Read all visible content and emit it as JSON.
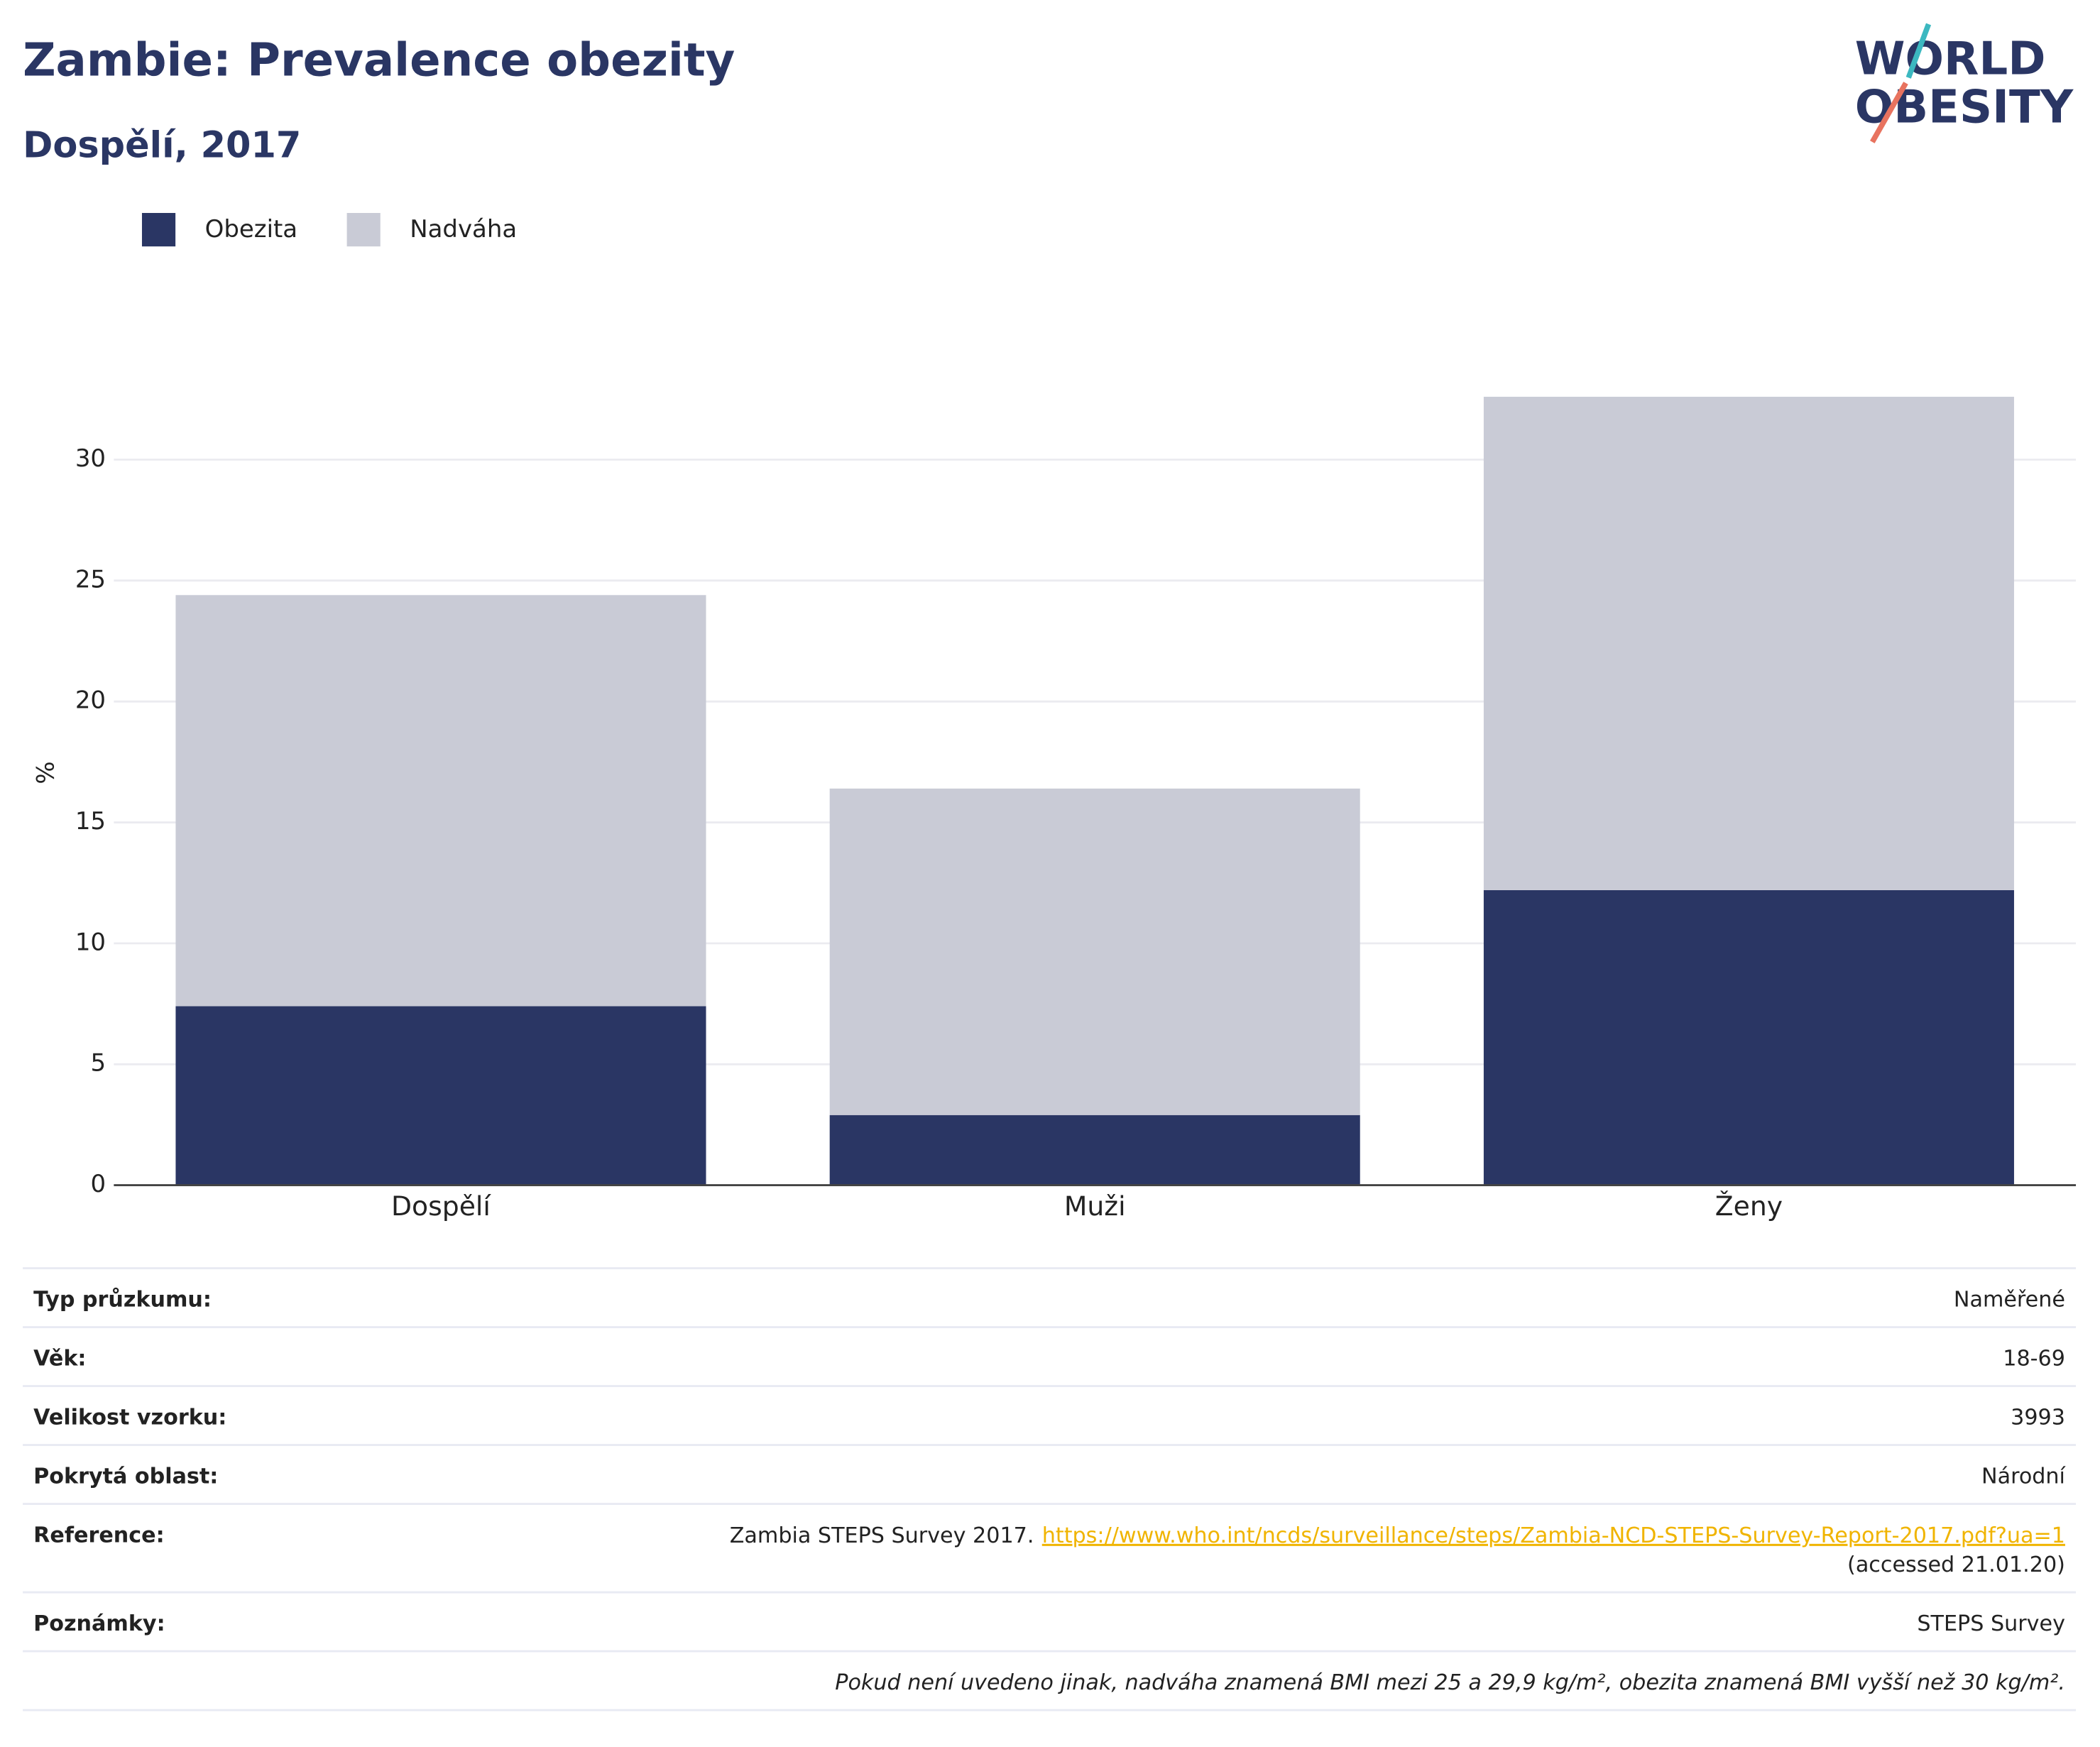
{
  "logo": {
    "line1": "WORLD",
    "line2": "OBESITY"
  },
  "chart_data": {
    "type": "stacked_bar",
    "title": "Zambie: Prevalence obezity",
    "subtitle": "Dospělí, 2017",
    "ylabel": "%",
    "categories": [
      "Dospělí",
      "Muži",
      "Ženy"
    ],
    "series": [
      {
        "name": "Obezita",
        "color": "#2a3664",
        "values": [
          7.4,
          2.9,
          12.2
        ]
      },
      {
        "name": "Nadváha",
        "color": "#c9cbd6",
        "values": [
          17.0,
          13.5,
          20.4
        ]
      }
    ],
    "ylim": [
      0,
      33.5
    ],
    "yticks": [
      0,
      5,
      10,
      15,
      20,
      25,
      30
    ],
    "grid": true,
    "legend": "top-left"
  },
  "table": {
    "rows": [
      [
        "Typ průzkumu:",
        "Naměřené"
      ],
      [
        "Věk:",
        "18-69"
      ],
      [
        "Velikost vzorku:",
        "3993"
      ],
      [
        "Pokrytá oblast:",
        "Národní"
      ]
    ],
    "reference": {
      "label": "Reference:",
      "text": "Zambia STEPS Survey 2017.",
      "link": "https://www.who.int/ncds/surveillance/steps/Zambia-NCD-STEPS-Survey-Report-2017.pdf?ua=1",
      "accessed": "(accessed 21.01.20)"
    },
    "notes": {
      "label": "Poznámky:",
      "value": "STEPS Survey"
    },
    "footnote": "Pokud není uvedeno jinak, nadváha znamená BMI mezi 25 a 29,9 kg/m², obezita znamená BMI vyšší než 30 kg/m²."
  }
}
